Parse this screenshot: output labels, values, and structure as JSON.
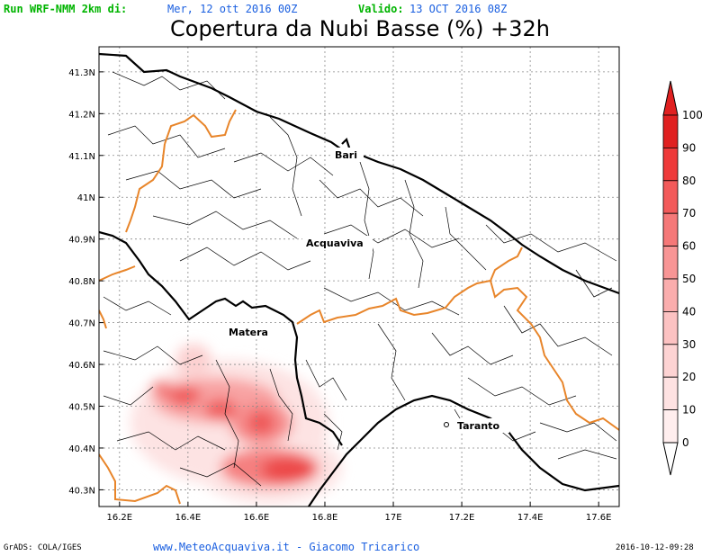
{
  "header": {
    "run_label": "Run WRF-NMM 2km di:",
    "run_date": "Mer, 12 ott 2016 00Z",
    "valid_label": "Valido:",
    "valid_date": "13 OCT 2016 08Z",
    "title": "Copertura da Nubi Basse (%) +32h"
  },
  "map": {
    "lat_labels": [
      "41.3N",
      "41.2N",
      "41.1N",
      "41N",
      "40.9N",
      "40.8N",
      "40.7N",
      "40.6N",
      "40.5N",
      "40.4N",
      "40.3N"
    ],
    "lat_values": [
      41.3,
      41.2,
      41.1,
      41.0,
      40.9,
      40.8,
      40.7,
      40.6,
      40.5,
      40.4,
      40.3
    ],
    "lon_labels": [
      "16.2E",
      "16.4E",
      "16.6E",
      "16.8E",
      "17E",
      "17.2E",
      "17.4E",
      "17.6E"
    ],
    "lon_values": [
      16.2,
      16.4,
      16.6,
      16.8,
      17.0,
      17.2,
      17.4,
      17.6
    ],
    "extent": {
      "lon_min": 16.14,
      "lon_max": 17.66,
      "lat_min": 40.26,
      "lat_max": 41.36
    },
    "cities": [
      "Bari",
      "Acquaviva",
      "Matera",
      "Taranto"
    ],
    "colors": {
      "coast": "#000000",
      "region_border": "#e8852a",
      "municipal": "#000000",
      "grid": "#888888"
    }
  },
  "colorbar": {
    "levels": [
      "100",
      "90",
      "80",
      "70",
      "60",
      "50",
      "40",
      "30",
      "20",
      "10",
      "0"
    ],
    "colors": [
      "#e02020",
      "#ee3a3a",
      "#f25a5a",
      "#f57878",
      "#f89595",
      "#faadad",
      "#fcc2c2",
      "#fdd3d3",
      "#fee2e2",
      "#ffeeee"
    ]
  },
  "footer": {
    "left": "GrADS: COLA/IGES",
    "center": "www.MeteoAcquaviva.it - Giacomo Tricarico",
    "right": "2016-10-12-09:28"
  }
}
